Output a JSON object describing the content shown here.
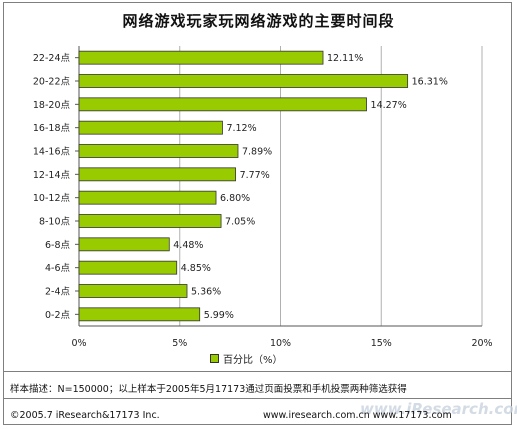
{
  "chart_data": {
    "type": "bar",
    "orientation": "horizontal",
    "title": "网络游戏玩家玩网络游戏的主要时间段",
    "categories": [
      "22-24点",
      "20-22点",
      "18-20点",
      "16-18点",
      "14-16点",
      "12-14点",
      "10-12点",
      "8-10点",
      "6-8点",
      "4-6点",
      "2-4点",
      "0-2点"
    ],
    "series": [
      {
        "name": "百分比（%）",
        "values": [
          12.11,
          16.31,
          14.27,
          7.12,
          7.89,
          7.77,
          6.8,
          7.05,
          4.48,
          4.85,
          5.36,
          5.99
        ],
        "labels": [
          "12.11%",
          "16.31%",
          "14.27%",
          "7.12%",
          "7.89%",
          "7.77%",
          "6.80%",
          "7.05%",
          "4.48%",
          "4.85%",
          "5.36%",
          "5.99%"
        ]
      }
    ],
    "xlim": [
      0,
      20
    ],
    "xticks": [
      "0%",
      "5%",
      "10%",
      "15%",
      "20%"
    ],
    "grid": true,
    "legend_position": "bottom",
    "bar_color": "#99cc00"
  },
  "notes": {
    "sample": "样本描述：N=150000；以上样本于2005年5月17173通过页面投票和手机投票两种筛选获得",
    "copyright": "©2005.7 iResearch&17173 Inc.",
    "website": "www.iresearch.com.cn  www.17173.com",
    "watermark": "www.iResearch.com"
  }
}
